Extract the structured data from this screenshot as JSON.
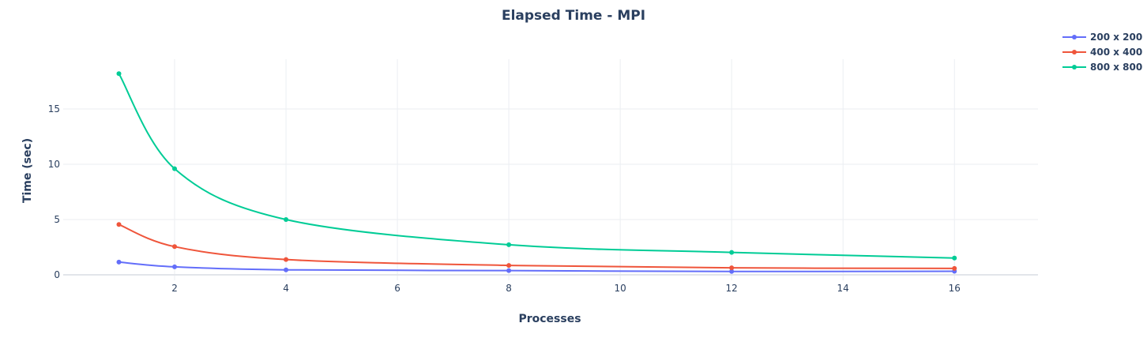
{
  "chart_data": {
    "type": "line",
    "title": "Elapsed Time - MPI",
    "xlabel": "Processes",
    "ylabel": "Time (sec)",
    "x": [
      1,
      2,
      4,
      8,
      12,
      16
    ],
    "xlim": [
      0,
      17.5
    ],
    "ylim": [
      -0.5,
      19.5
    ],
    "xticks": [
      2,
      4,
      6,
      8,
      10,
      12,
      14,
      16
    ],
    "yticks": [
      0,
      5,
      10,
      15
    ],
    "grid": true,
    "legend_position": "top-right",
    "series": [
      {
        "name": "200 x 200",
        "color": "#636efa",
        "values": [
          1.15,
          0.72,
          0.45,
          0.38,
          0.3,
          0.32
        ]
      },
      {
        "name": "400 x 400",
        "color": "#ef553b",
        "values": [
          4.55,
          2.55,
          1.38,
          0.85,
          0.63,
          0.58
        ]
      },
      {
        "name": "800 x 800",
        "color": "#00cc96",
        "values": [
          18.2,
          9.6,
          5.0,
          2.72,
          2.03,
          1.52
        ]
      }
    ]
  }
}
